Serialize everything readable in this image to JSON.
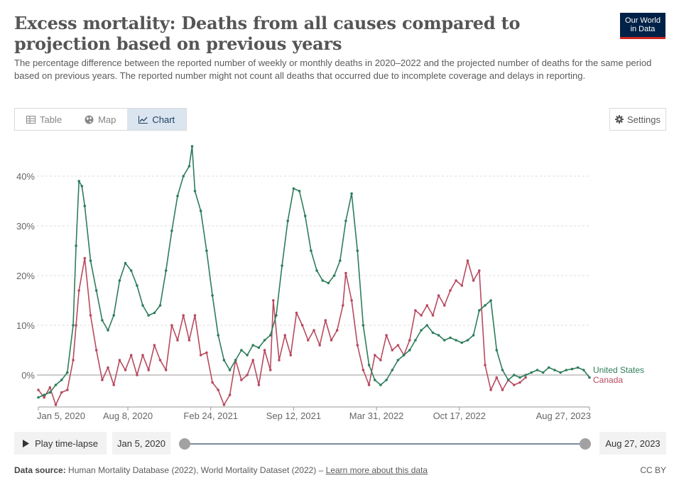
{
  "header": {
    "title": "Excess mortality: Deaths from all causes compared to projection based on previous years",
    "subtitle": "The percentage difference between the reported number of weekly or monthly deaths in 2020–2022 and the projected number of deaths for the same period based on previous years. The reported number might not count all deaths that occurred due to incomplete coverage and delays in reporting.",
    "logo_line1": "Our World",
    "logo_line2": "in Data"
  },
  "tabs": {
    "table": "Table",
    "map": "Map",
    "chart": "Chart",
    "active": "chart"
  },
  "settings_label": "Settings",
  "colors": {
    "us": "#2e7d5b",
    "canada": "#b84a5f",
    "grid": "#dddddd",
    "zero_line": "#999999"
  },
  "chart_data": {
    "type": "line",
    "title": "",
    "xlabel": "",
    "ylabel": "",
    "ylim": [
      -6,
      47
    ],
    "xlim": [
      "2020-01-05",
      "2023-08-27"
    ],
    "y_ticks": [
      "0%",
      "10%",
      "20%",
      "30%",
      "40%"
    ],
    "y_tick_values": [
      0,
      10,
      20,
      30,
      40
    ],
    "x_ticks": [
      "Jan 5, 2020",
      "Aug 8, 2020",
      "Feb 24, 2021",
      "Sep 12, 2021",
      "Mar 31, 2022",
      "Oct 17, 2022",
      "Aug 27, 2023"
    ],
    "x_tick_dates": [
      "2020-01-05",
      "2020-08-08",
      "2021-02-24",
      "2021-09-12",
      "2022-03-31",
      "2022-10-17",
      "2023-08-27"
    ],
    "grid": true,
    "series": [
      {
        "name": "United States",
        "color": "#2e7d5b",
        "points": [
          [
            "2020-01-05",
            -4.5
          ],
          [
            "2020-01-19",
            -4
          ],
          [
            "2020-02-02",
            -3.5
          ],
          [
            "2020-02-16",
            -2
          ],
          [
            "2020-03-01",
            -1
          ],
          [
            "2020-03-15",
            0.5
          ],
          [
            "2020-03-29",
            10
          ],
          [
            "2020-04-05",
            26
          ],
          [
            "2020-04-12",
            39
          ],
          [
            "2020-04-19",
            38
          ],
          [
            "2020-04-26",
            34
          ],
          [
            "2020-05-10",
            23
          ],
          [
            "2020-05-24",
            17
          ],
          [
            "2020-06-07",
            11
          ],
          [
            "2020-06-21",
            9
          ],
          [
            "2020-07-05",
            12
          ],
          [
            "2020-07-19",
            19
          ],
          [
            "2020-08-02",
            22.5
          ],
          [
            "2020-08-16",
            21
          ],
          [
            "2020-08-30",
            18
          ],
          [
            "2020-09-13",
            14
          ],
          [
            "2020-09-27",
            12
          ],
          [
            "2020-10-11",
            12.5
          ],
          [
            "2020-10-25",
            14
          ],
          [
            "2020-11-08",
            21
          ],
          [
            "2020-11-22",
            29
          ],
          [
            "2020-12-06",
            36
          ],
          [
            "2020-12-20",
            40
          ],
          [
            "2021-01-03",
            42
          ],
          [
            "2021-01-10",
            46
          ],
          [
            "2021-01-17",
            37
          ],
          [
            "2021-01-31",
            33
          ],
          [
            "2021-02-14",
            25
          ],
          [
            "2021-02-28",
            16
          ],
          [
            "2021-03-14",
            8
          ],
          [
            "2021-03-28",
            3
          ],
          [
            "2021-04-11",
            1
          ],
          [
            "2021-04-25",
            3
          ],
          [
            "2021-05-09",
            5
          ],
          [
            "2021-05-23",
            4
          ],
          [
            "2021-06-06",
            6
          ],
          [
            "2021-06-20",
            5.5
          ],
          [
            "2021-07-04",
            7
          ],
          [
            "2021-07-18",
            8
          ],
          [
            "2021-08-01",
            12
          ],
          [
            "2021-08-15",
            22
          ],
          [
            "2021-08-29",
            31
          ],
          [
            "2021-09-12",
            37.5
          ],
          [
            "2021-09-26",
            37
          ],
          [
            "2021-10-10",
            32
          ],
          [
            "2021-10-24",
            25
          ],
          [
            "2021-11-07",
            21
          ],
          [
            "2021-11-21",
            19
          ],
          [
            "2021-12-05",
            18.5
          ],
          [
            "2021-12-19",
            20
          ],
          [
            "2022-01-02",
            23
          ],
          [
            "2022-01-16",
            31
          ],
          [
            "2022-01-30",
            36.5
          ],
          [
            "2022-02-13",
            25
          ],
          [
            "2022-02-27",
            10
          ],
          [
            "2022-03-13",
            2
          ],
          [
            "2022-03-27",
            -1
          ],
          [
            "2022-04-10",
            -2
          ],
          [
            "2022-04-24",
            -1
          ],
          [
            "2022-05-08",
            1
          ],
          [
            "2022-05-22",
            3
          ],
          [
            "2022-06-05",
            4
          ],
          [
            "2022-06-19",
            5
          ],
          [
            "2022-07-03",
            7
          ],
          [
            "2022-07-17",
            9
          ],
          [
            "2022-07-31",
            10
          ],
          [
            "2022-08-14",
            8.5
          ],
          [
            "2022-08-28",
            8
          ],
          [
            "2022-09-11",
            7
          ],
          [
            "2022-09-25",
            7.5
          ],
          [
            "2022-10-09",
            7
          ],
          [
            "2022-10-23",
            6.5
          ],
          [
            "2022-11-06",
            7
          ],
          [
            "2022-11-20",
            8
          ],
          [
            "2022-12-04",
            13
          ],
          [
            "2022-12-18",
            14
          ],
          [
            "2023-01-01",
            15
          ],
          [
            "2023-01-15",
            5
          ],
          [
            "2023-01-29",
            1
          ],
          [
            "2023-02-12",
            -1
          ],
          [
            "2023-02-26",
            0
          ],
          [
            "2023-03-12",
            -0.5
          ],
          [
            "2023-03-26",
            0
          ],
          [
            "2023-04-09",
            0.5
          ],
          [
            "2023-04-23",
            1
          ],
          [
            "2023-05-07",
            0.5
          ],
          [
            "2023-05-21",
            1.5
          ],
          [
            "2023-06-04",
            1
          ],
          [
            "2023-06-18",
            0.5
          ],
          [
            "2023-07-02",
            1
          ],
          [
            "2023-07-16",
            1.2
          ],
          [
            "2023-07-30",
            1.5
          ],
          [
            "2023-08-13",
            1
          ],
          [
            "2023-08-27",
            -0.5
          ]
        ]
      },
      {
        "name": "Canada",
        "color": "#b84a5f",
        "points": [
          [
            "2020-01-05",
            -3
          ],
          [
            "2020-01-19",
            -4.5
          ],
          [
            "2020-02-02",
            -2.5
          ],
          [
            "2020-02-16",
            -6
          ],
          [
            "2020-03-01",
            -3.5
          ],
          [
            "2020-03-15",
            -3
          ],
          [
            "2020-03-29",
            3
          ],
          [
            "2020-04-05",
            10
          ],
          [
            "2020-04-12",
            17
          ],
          [
            "2020-04-26",
            23.5
          ],
          [
            "2020-05-10",
            12
          ],
          [
            "2020-05-24",
            5
          ],
          [
            "2020-06-07",
            -1
          ],
          [
            "2020-06-21",
            1.5
          ],
          [
            "2020-07-05",
            -2
          ],
          [
            "2020-07-19",
            3
          ],
          [
            "2020-08-02",
            1
          ],
          [
            "2020-08-16",
            4
          ],
          [
            "2020-08-30",
            0
          ],
          [
            "2020-09-13",
            4
          ],
          [
            "2020-09-27",
            1
          ],
          [
            "2020-10-11",
            6
          ],
          [
            "2020-10-25",
            3
          ],
          [
            "2020-11-08",
            1
          ],
          [
            "2020-11-22",
            10
          ],
          [
            "2020-12-06",
            7
          ],
          [
            "2020-12-20",
            12
          ],
          [
            "2021-01-03",
            7
          ],
          [
            "2021-01-17",
            12
          ],
          [
            "2021-01-31",
            4
          ],
          [
            "2021-02-14",
            4.5
          ],
          [
            "2021-02-28",
            -1.5
          ],
          [
            "2021-03-14",
            -3
          ],
          [
            "2021-03-28",
            -6
          ],
          [
            "2021-04-11",
            -4
          ],
          [
            "2021-04-25",
            3
          ],
          [
            "2021-05-09",
            -1
          ],
          [
            "2021-05-23",
            0
          ],
          [
            "2021-06-06",
            3
          ],
          [
            "2021-06-20",
            -2
          ],
          [
            "2021-07-04",
            5
          ],
          [
            "2021-07-18",
            1
          ],
          [
            "2021-07-25",
            15
          ],
          [
            "2021-08-08",
            3
          ],
          [
            "2021-08-22",
            8
          ],
          [
            "2021-09-05",
            4
          ],
          [
            "2021-09-19",
            12.5
          ],
          [
            "2021-10-03",
            10
          ],
          [
            "2021-10-17",
            7
          ],
          [
            "2021-10-31",
            9
          ],
          [
            "2021-11-14",
            6
          ],
          [
            "2021-11-28",
            11
          ],
          [
            "2021-12-12",
            7
          ],
          [
            "2021-12-26",
            9
          ],
          [
            "2022-01-09",
            14
          ],
          [
            "2022-01-16",
            20.5
          ],
          [
            "2022-01-30",
            15
          ],
          [
            "2022-02-13",
            6
          ],
          [
            "2022-02-27",
            1
          ],
          [
            "2022-03-13",
            -2
          ],
          [
            "2022-03-27",
            4
          ],
          [
            "2022-04-10",
            3
          ],
          [
            "2022-04-24",
            8
          ],
          [
            "2022-05-08",
            5
          ],
          [
            "2022-05-22",
            6
          ],
          [
            "2022-06-05",
            4
          ],
          [
            "2022-06-19",
            7
          ],
          [
            "2022-07-03",
            13
          ],
          [
            "2022-07-17",
            12
          ],
          [
            "2022-07-31",
            14
          ],
          [
            "2022-08-14",
            12
          ],
          [
            "2022-08-28",
            16
          ],
          [
            "2022-09-11",
            14
          ],
          [
            "2022-09-25",
            17
          ],
          [
            "2022-10-09",
            19
          ],
          [
            "2022-10-23",
            18
          ],
          [
            "2022-11-06",
            23
          ],
          [
            "2022-11-20",
            19
          ],
          [
            "2022-12-04",
            21
          ],
          [
            "2022-12-18",
            2
          ],
          [
            "2023-01-01",
            -3
          ],
          [
            "2023-01-15",
            -0.5
          ],
          [
            "2023-01-29",
            -3
          ],
          [
            "2023-02-12",
            -1
          ],
          [
            "2023-02-26",
            -2
          ],
          [
            "2023-03-12",
            -1.5
          ],
          [
            "2023-03-26",
            -0.5
          ]
        ]
      }
    ]
  },
  "timeline": {
    "play_label": "Play time-lapse",
    "start_date": "Jan 5, 2020",
    "end_date": "Aug 27, 2023"
  },
  "footer": {
    "source_label": "Data source:",
    "source_text": "Human Mortality Database (2022), World Mortality Dataset (2022) –",
    "learn_more": "Learn more about this data",
    "license": "CC BY"
  }
}
